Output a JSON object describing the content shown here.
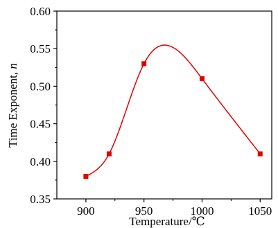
{
  "chart_data": {
    "type": "line",
    "title": "",
    "xlabel": "Temperature/℃",
    "ylabel": "Time Exponent, ",
    "ylabel_italic": "n",
    "xlim": [
      875,
      1060
    ],
    "ylim": [
      0.35,
      0.6
    ],
    "x_ticks": [
      900,
      950,
      1000,
      1050
    ],
    "x_tick_labels": [
      "900",
      "950",
      "1000",
      "1050"
    ],
    "y_ticks": [
      0.35,
      0.4,
      0.45,
      0.5,
      0.55,
      0.6
    ],
    "y_tick_labels": [
      "0.35",
      "0.40",
      "0.45",
      "0.50",
      "0.55",
      "0.60"
    ],
    "grid": false,
    "series": [
      {
        "x": [
          900,
          920,
          950,
          1000,
          1050
        ],
        "y": [
          0.38,
          0.41,
          0.53,
          0.51,
          0.41
        ],
        "color": "#e00000",
        "marker": "square",
        "smooth": true
      }
    ]
  }
}
